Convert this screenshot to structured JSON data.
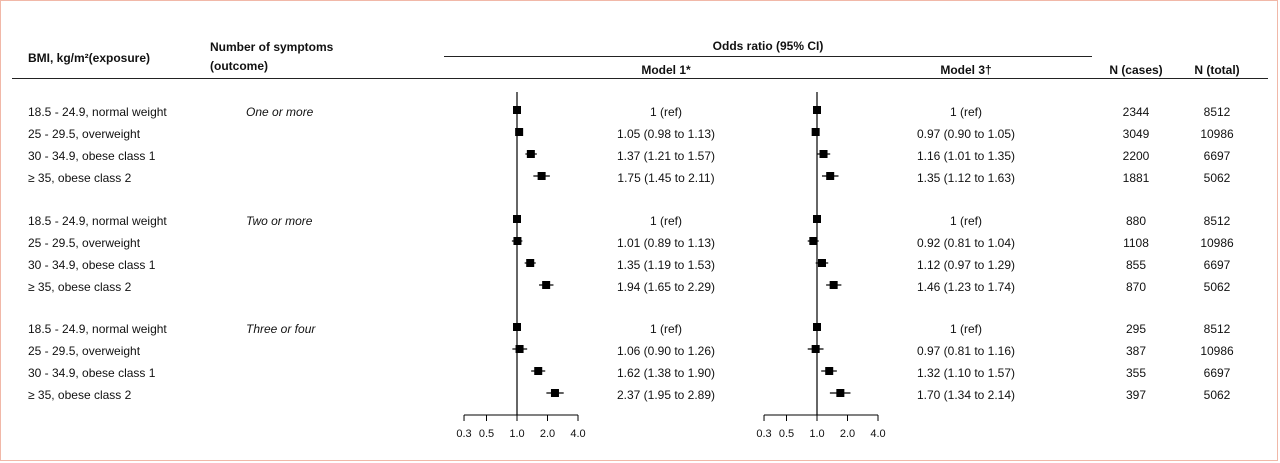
{
  "headers": {
    "exposure_line1": "BMI, kg/m²(exposure)",
    "outcome_line1": "Number of symptoms",
    "outcome_line2": "(outcome)",
    "or_group": "Odds ratio (95% CI)",
    "model1": "Model 1*",
    "model3": "Model 3†",
    "n_cases": "N (cases)",
    "n_total": "N (total)"
  },
  "groups": [
    {
      "outcome": "One or more",
      "rows": [
        {
          "bmi": "18.5 - 24.9, normal weight",
          "m1_text": "1 (ref)",
          "m3_text": "1 (ref)",
          "n_cases": "2344",
          "n_total": "8512"
        },
        {
          "bmi": "25 - 29.5, overweight",
          "m1_text": "1.05 (0.98 to 1.13)",
          "m3_text": "0.97 (0.90 to 1.05)",
          "n_cases": "3049",
          "n_total": "10986"
        },
        {
          "bmi": "30 - 34.9, obese class 1",
          "m1_text": "1.37 (1.21 to 1.57)",
          "m3_text": "1.16 (1.01 to 1.35)",
          "n_cases": "2200",
          "n_total": "6697"
        },
        {
          "bmi": "≥ 35, obese class 2",
          "m1_text": "1.75 (1.45 to 2.11)",
          "m3_text": "1.35 (1.12 to 1.63)",
          "n_cases": "1881",
          "n_total": "5062"
        }
      ]
    },
    {
      "outcome": "Two or more",
      "rows": [
        {
          "bmi": "18.5 - 24.9, normal weight",
          "m1_text": "1 (ref)",
          "m3_text": "1 (ref)",
          "n_cases": "880",
          "n_total": "8512"
        },
        {
          "bmi": "25 - 29.5, overweight",
          "m1_text": "1.01 (0.89 to 1.13)",
          "m3_text": "0.92 (0.81 to 1.04)",
          "n_cases": "1108",
          "n_total": "10986"
        },
        {
          "bmi": "30 - 34.9, obese class 1",
          "m1_text": "1.35 (1.19 to 1.53)",
          "m3_text": "1.12 (0.97 to 1.29)",
          "n_cases": "855",
          "n_total": "6697"
        },
        {
          "bmi": "≥ 35, obese class 2",
          "m1_text": "1.94 (1.65 to 2.29)",
          "m3_text": "1.46 (1.23 to 1.74)",
          "n_cases": "870",
          "n_total": "5062"
        }
      ]
    },
    {
      "outcome": "Three or four",
      "rows": [
        {
          "bmi": "18.5 - 24.9, normal weight",
          "m1_text": "1 (ref)",
          "m3_text": "1 (ref)",
          "n_cases": "295",
          "n_total": "8512"
        },
        {
          "bmi": "25 - 29.5, overweight",
          "m1_text": "1.06 (0.90 to 1.26)",
          "m3_text": "0.97 (0.81 to 1.16)",
          "n_cases": "387",
          "n_total": "10986"
        },
        {
          "bmi": "30 - 34.9, obese class 1",
          "m1_text": "1.62 (1.38 to 1.90)",
          "m3_text": "1.32 (1.10 to 1.57)",
          "n_cases": "355",
          "n_total": "6697"
        },
        {
          "bmi": "≥ 35, obese class 2",
          "m1_text": "2.37 (1.95 to 2.89)",
          "m3_text": "1.70 (1.34 to 2.14)",
          "n_cases": "397",
          "n_total": "5062"
        }
      ]
    }
  ],
  "chart_data": {
    "type": "forest",
    "scale": "log",
    "reference_line": 1.0,
    "x_ticks": [
      0.3,
      0.5,
      1.0,
      2.0,
      4.0
    ],
    "x_tick_labels": [
      "0.3",
      "0.5",
      "1.0",
      "2.0",
      "4.0"
    ],
    "xlim": [
      0.3,
      4.0
    ],
    "marker": "square",
    "panels": [
      {
        "name": "Model 1*",
        "estimates": [
          [
            {
              "or": 1,
              "lo": 1,
              "hi": 1
            },
            {
              "or": 1.05,
              "lo": 0.98,
              "hi": 1.13
            },
            {
              "or": 1.37,
              "lo": 1.21,
              "hi": 1.57
            },
            {
              "or": 1.75,
              "lo": 1.45,
              "hi": 2.11
            }
          ],
          [
            {
              "or": 1,
              "lo": 1,
              "hi": 1
            },
            {
              "or": 1.01,
              "lo": 0.89,
              "hi": 1.13
            },
            {
              "or": 1.35,
              "lo": 1.19,
              "hi": 1.53
            },
            {
              "or": 1.94,
              "lo": 1.65,
              "hi": 2.29
            }
          ],
          [
            {
              "or": 1,
              "lo": 1,
              "hi": 1
            },
            {
              "or": 1.06,
              "lo": 0.9,
              "hi": 1.26
            },
            {
              "or": 1.62,
              "lo": 1.38,
              "hi": 1.9
            },
            {
              "or": 2.37,
              "lo": 1.95,
              "hi": 2.89
            }
          ]
        ]
      },
      {
        "name": "Model 3†",
        "estimates": [
          [
            {
              "or": 1,
              "lo": 1,
              "hi": 1
            },
            {
              "or": 0.97,
              "lo": 0.9,
              "hi": 1.05
            },
            {
              "or": 1.16,
              "lo": 1.01,
              "hi": 1.35
            },
            {
              "or": 1.35,
              "lo": 1.12,
              "hi": 1.63
            }
          ],
          [
            {
              "or": 1,
              "lo": 1,
              "hi": 1
            },
            {
              "or": 0.92,
              "lo": 0.81,
              "hi": 1.04
            },
            {
              "or": 1.12,
              "lo": 0.97,
              "hi": 1.29
            },
            {
              "or": 1.46,
              "lo": 1.23,
              "hi": 1.74
            }
          ],
          [
            {
              "or": 1,
              "lo": 1,
              "hi": 1
            },
            {
              "or": 0.97,
              "lo": 0.81,
              "hi": 1.16
            },
            {
              "or": 1.32,
              "lo": 1.1,
              "hi": 1.57
            },
            {
              "or": 1.7,
              "lo": 1.34,
              "hi": 2.14
            }
          ]
        ]
      }
    ]
  }
}
